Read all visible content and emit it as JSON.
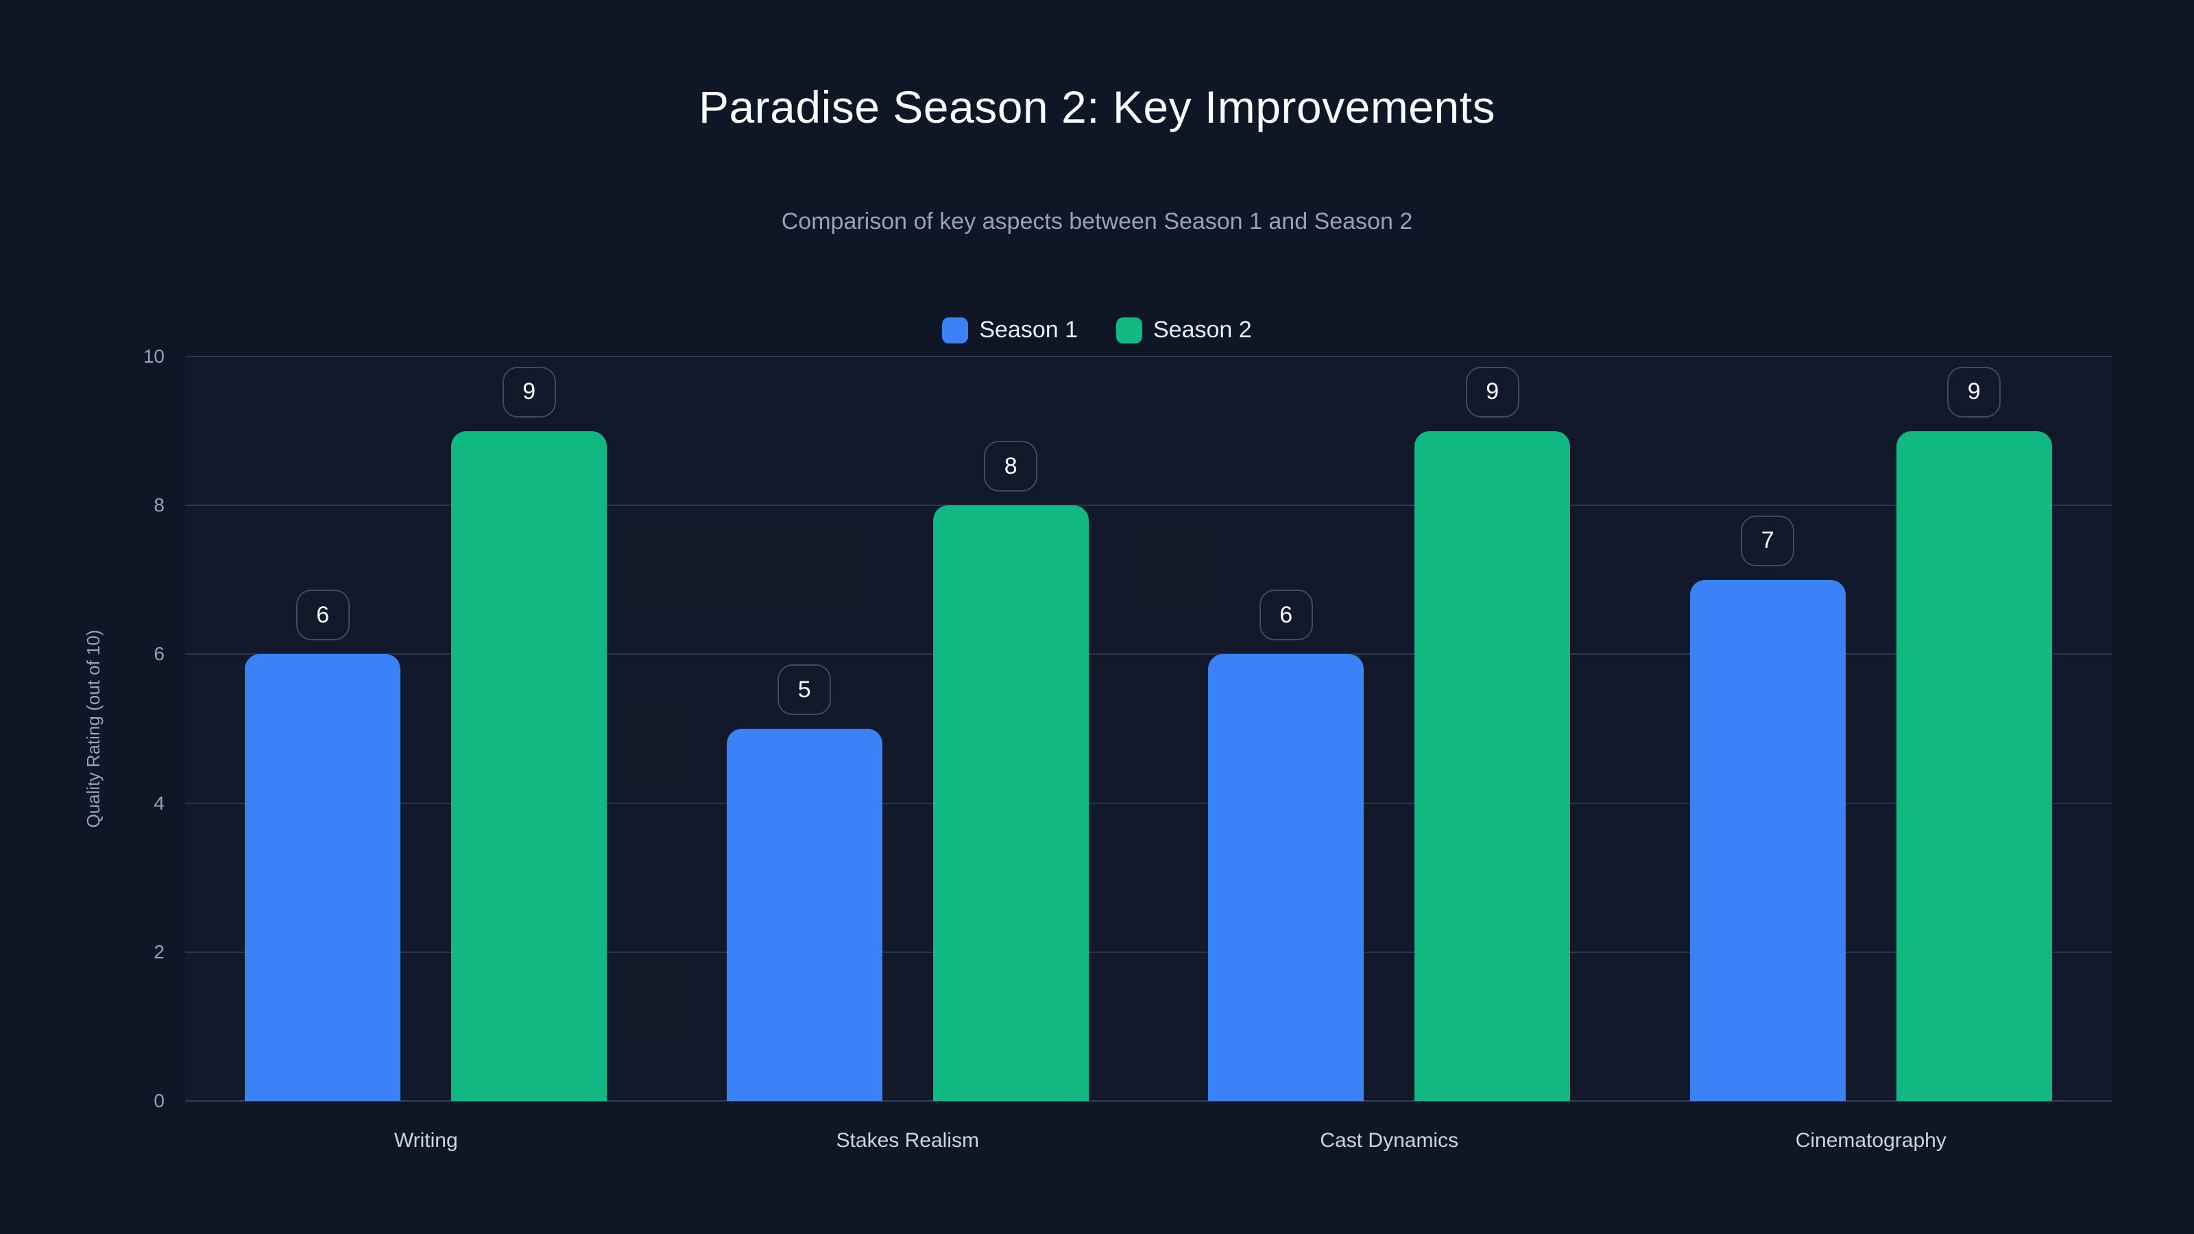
{
  "chart_data": {
    "type": "bar",
    "title": "Paradise Season 2: Key Improvements",
    "subtitle": "Comparison of key aspects between Season 1 and Season 2",
    "categories": [
      "Writing",
      "Stakes Realism",
      "Cast Dynamics",
      "Cinematography"
    ],
    "series": [
      {
        "name": "Season 1",
        "color": "#3b82f6",
        "values": [
          6,
          5,
          6,
          7
        ]
      },
      {
        "name": "Season 2",
        "color": "#10b981",
        "values": [
          9,
          8,
          9,
          9
        ]
      }
    ],
    "xlabel": "",
    "ylabel": "Quality Rating (out of 10)",
    "ylim": [
      0,
      10
    ],
    "yticks": [
      0,
      2,
      4,
      6,
      8,
      10
    ],
    "grid": true,
    "legend_position": "top",
    "value_labels": true
  },
  "colors": {
    "background": "#0f1726",
    "season1": "#3b82f6",
    "season2": "#10b981",
    "title_text": "#f8fafc",
    "subtitle_text": "#94a3b8",
    "axis_text": "#94a3b8",
    "category_text": "#cbd5e1",
    "gridline": "#2a3550",
    "badge_border": "#3f4a5e",
    "badge_text": "#f8fafc",
    "legend_text": "#e8edf4"
  }
}
